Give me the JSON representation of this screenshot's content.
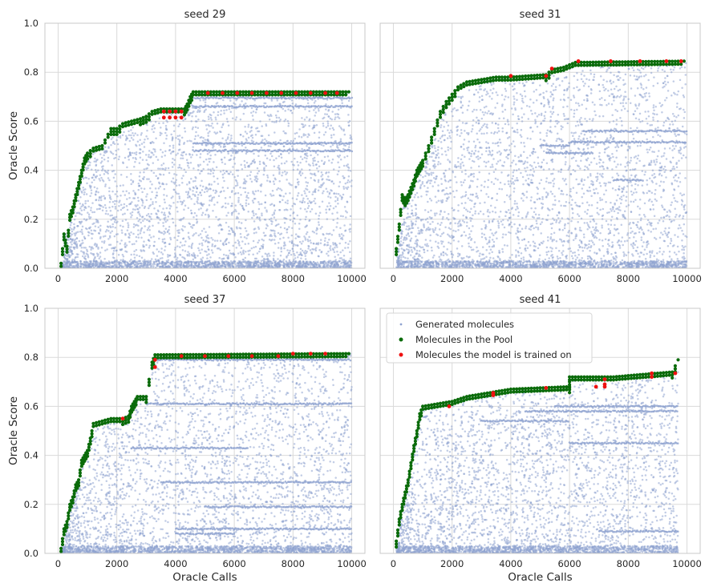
{
  "chart_data": [
    {
      "type": "scatter",
      "title": "seed 29",
      "xlabel": "",
      "ylabel": "Oracle Score",
      "xlim": [
        -450,
        10450
      ],
      "ylim": [
        0,
        1.0
      ],
      "xticks": [
        0,
        2000,
        4000,
        6000,
        8000,
        10000
      ],
      "yticks": [
        0.0,
        0.2,
        0.4,
        0.6,
        0.8,
        1.0
      ],
      "grid": true,
      "generated": {
        "count": 4200,
        "xmax": 10000,
        "bands": [
          [
            4600,
            10000,
            0.695
          ],
          [
            4600,
            10000,
            0.51
          ],
          [
            4600,
            10000,
            0.48
          ],
          [
            4600,
            10000,
            0.66
          ]
        ]
      },
      "pool_frontier": [
        [
          100,
          0.02
        ],
        [
          200,
          0.14
        ],
        [
          300,
          0.09
        ],
        [
          400,
          0.22
        ],
        [
          500,
          0.25
        ],
        [
          600,
          0.3
        ],
        [
          700,
          0.35
        ],
        [
          800,
          0.4
        ],
        [
          900,
          0.45
        ],
        [
          1000,
          0.47
        ],
        [
          1200,
          0.49
        ],
        [
          1500,
          0.5
        ],
        [
          1800,
          0.57
        ],
        [
          2000,
          0.57
        ],
        [
          2200,
          0.59
        ],
        [
          2500,
          0.6
        ],
        [
          2800,
          0.61
        ],
        [
          3000,
          0.62
        ],
        [
          3200,
          0.64
        ],
        [
          3500,
          0.65
        ],
        [
          4300,
          0.65
        ],
        [
          4400,
          0.67
        ],
        [
          4500,
          0.7
        ],
        [
          4600,
          0.72
        ],
        [
          9900,
          0.72
        ]
      ],
      "trained_points": [
        [
          3600,
          0.64
        ],
        [
          3600,
          0.615
        ],
        [
          3800,
          0.64
        ],
        [
          3800,
          0.615
        ],
        [
          4000,
          0.64
        ],
        [
          4000,
          0.615
        ],
        [
          4200,
          0.64
        ],
        [
          4200,
          0.615
        ],
        [
          5100,
          0.715
        ],
        [
          5600,
          0.715
        ],
        [
          6100,
          0.715
        ],
        [
          6600,
          0.715
        ],
        [
          7100,
          0.715
        ],
        [
          7600,
          0.715
        ],
        [
          8100,
          0.715
        ],
        [
          8600,
          0.715
        ],
        [
          9100,
          0.715
        ],
        [
          9500,
          0.715
        ]
      ]
    },
    {
      "type": "scatter",
      "title": "seed 31",
      "xlabel": "",
      "ylabel": "",
      "xlim": [
        -450,
        10450
      ],
      "ylim": [
        0,
        1.0
      ],
      "xticks": [
        0,
        2000,
        4000,
        6000,
        8000,
        10000
      ],
      "yticks": [
        0.0,
        0.2,
        0.4,
        0.6,
        0.8,
        1.0
      ],
      "grid": true,
      "generated": {
        "count": 4200,
        "xmax": 10000,
        "bands": [
          [
            6500,
            10000,
            0.56
          ],
          [
            6000,
            10000,
            0.515
          ],
          [
            5000,
            6000,
            0.5
          ],
          [
            5200,
            6800,
            0.47
          ],
          [
            7500,
            8500,
            0.36
          ]
        ]
      },
      "pool_frontier": [
        [
          100,
          0.08
        ],
        [
          200,
          0.18
        ],
        [
          300,
          0.3
        ],
        [
          400,
          0.28
        ],
        [
          500,
          0.3
        ],
        [
          600,
          0.33
        ],
        [
          700,
          0.36
        ],
        [
          800,
          0.4
        ],
        [
          900,
          0.42
        ],
        [
          1000,
          0.44
        ],
        [
          1200,
          0.5
        ],
        [
          1400,
          0.57
        ],
        [
          1600,
          0.64
        ],
        [
          1800,
          0.68
        ],
        [
          2000,
          0.71
        ],
        [
          2200,
          0.74
        ],
        [
          2500,
          0.76
        ],
        [
          3000,
          0.77
        ],
        [
          3500,
          0.78
        ],
        [
          4000,
          0.78
        ],
        [
          5200,
          0.79
        ],
        [
          5400,
          0.81
        ],
        [
          5800,
          0.82
        ],
        [
          6200,
          0.84
        ],
        [
          9900,
          0.845
        ]
      ],
      "trained_points": [
        [
          4000,
          0.785
        ],
        [
          5200,
          0.785
        ],
        [
          5400,
          0.815
        ],
        [
          6300,
          0.845
        ],
        [
          7400,
          0.845
        ],
        [
          8400,
          0.845
        ],
        [
          9300,
          0.845
        ],
        [
          9800,
          0.845
        ]
      ]
    },
    {
      "type": "scatter",
      "title": "seed 37",
      "xlabel": "Oracle Calls",
      "ylabel": "Oracle Score",
      "xlim": [
        -450,
        10450
      ],
      "ylim": [
        0,
        1.0
      ],
      "xticks": [
        0,
        2000,
        4000,
        6000,
        8000,
        10000
      ],
      "yticks": [
        0.0,
        0.2,
        0.4,
        0.6,
        0.8,
        1.0
      ],
      "grid": true,
      "generated": {
        "count": 4200,
        "xmax": 10000,
        "bands": [
          [
            3300,
            10000,
            0.79
          ],
          [
            3000,
            10000,
            0.61
          ],
          [
            2500,
            6500,
            0.43
          ],
          [
            3500,
            10000,
            0.29
          ],
          [
            4000,
            10000,
            0.1
          ],
          [
            5000,
            10000,
            0.19
          ],
          [
            4000,
            6000,
            0.08
          ]
        ]
      },
      "pool_frontier": [
        [
          100,
          0.02
        ],
        [
          200,
          0.1
        ],
        [
          300,
          0.13
        ],
        [
          400,
          0.2
        ],
        [
          500,
          0.23
        ],
        [
          600,
          0.28
        ],
        [
          700,
          0.3
        ],
        [
          800,
          0.38
        ],
        [
          900,
          0.4
        ],
        [
          1000,
          0.42
        ],
        [
          1100,
          0.47
        ],
        [
          1200,
          0.53
        ],
        [
          1500,
          0.54
        ],
        [
          1800,
          0.55
        ],
        [
          2200,
          0.55
        ],
        [
          2400,
          0.56
        ],
        [
          2500,
          0.6
        ],
        [
          2600,
          0.62
        ],
        [
          2700,
          0.64
        ],
        [
          3000,
          0.64
        ],
        [
          3200,
          0.78
        ],
        [
          3300,
          0.81
        ],
        [
          9900,
          0.815
        ]
      ],
      "trained_points": [
        [
          2200,
          0.55
        ],
        [
          3300,
          0.79
        ],
        [
          3300,
          0.76
        ],
        [
          4200,
          0.805
        ],
        [
          5000,
          0.805
        ],
        [
          5800,
          0.805
        ],
        [
          6600,
          0.805
        ],
        [
          7500,
          0.805
        ],
        [
          8000,
          0.815
        ],
        [
          8600,
          0.815
        ],
        [
          9100,
          0.815
        ]
      ]
    },
    {
      "type": "scatter",
      "title": "seed 41",
      "xlabel": "Oracle Calls",
      "ylabel": "",
      "xlim": [
        -450,
        10450
      ],
      "ylim": [
        0,
        1.0
      ],
      "xticks": [
        0,
        2000,
        4000,
        6000,
        8000,
        10000
      ],
      "yticks": [
        0.0,
        0.2,
        0.4,
        0.6,
        0.8,
        1.0
      ],
      "grid": true,
      "generated": {
        "count": 4200,
        "xmax": 9700,
        "bands": [
          [
            4500,
            9700,
            0.58
          ],
          [
            3000,
            6000,
            0.54
          ],
          [
            5500,
            9700,
            0.6
          ],
          [
            6000,
            9700,
            0.45
          ],
          [
            7000,
            9700,
            0.09
          ]
        ]
      },
      "pool_frontier": [
        [
          100,
          0.05
        ],
        [
          200,
          0.14
        ],
        [
          300,
          0.2
        ],
        [
          400,
          0.25
        ],
        [
          500,
          0.3
        ],
        [
          600,
          0.37
        ],
        [
          700,
          0.44
        ],
        [
          800,
          0.5
        ],
        [
          900,
          0.57
        ],
        [
          1000,
          0.6
        ],
        [
          1500,
          0.61
        ],
        [
          2000,
          0.62
        ],
        [
          2500,
          0.64
        ],
        [
          3000,
          0.65
        ],
        [
          3500,
          0.66
        ],
        [
          4000,
          0.67
        ],
        [
          5000,
          0.675
        ],
        [
          6000,
          0.68
        ],
        [
          6000,
          0.72
        ],
        [
          7000,
          0.72
        ],
        [
          7500,
          0.72
        ],
        [
          8500,
          0.73
        ],
        [
          9500,
          0.74
        ],
        [
          9700,
          0.79
        ]
      ],
      "trained_points": [
        [
          1900,
          0.6
        ],
        [
          3400,
          0.655
        ],
        [
          3400,
          0.645
        ],
        [
          5200,
          0.675
        ],
        [
          6900,
          0.68
        ],
        [
          7200,
          0.71
        ],
        [
          7200,
          0.69
        ],
        [
          7200,
          0.68
        ],
        [
          8800,
          0.735
        ],
        [
          8800,
          0.72
        ],
        [
          9600,
          0.735
        ]
      ]
    }
  ],
  "legend": {
    "location": "upper-left of seed 41",
    "entries": [
      {
        "label": "Generated molecules",
        "color": "#8ea2d0",
        "marker": "small-dot"
      },
      {
        "label": "Molecules in the Pool",
        "color": "#0a6b0a",
        "marker": "dot"
      },
      {
        "label": "Molecules the model is trained on",
        "color": "#ee1111",
        "marker": "dot"
      }
    ]
  },
  "colors": {
    "generated": "#8ea2d0",
    "pool": "#0a6b0a",
    "trained": "#ee1111",
    "grid": "#dadada",
    "frame": "#c8c8c8"
  }
}
